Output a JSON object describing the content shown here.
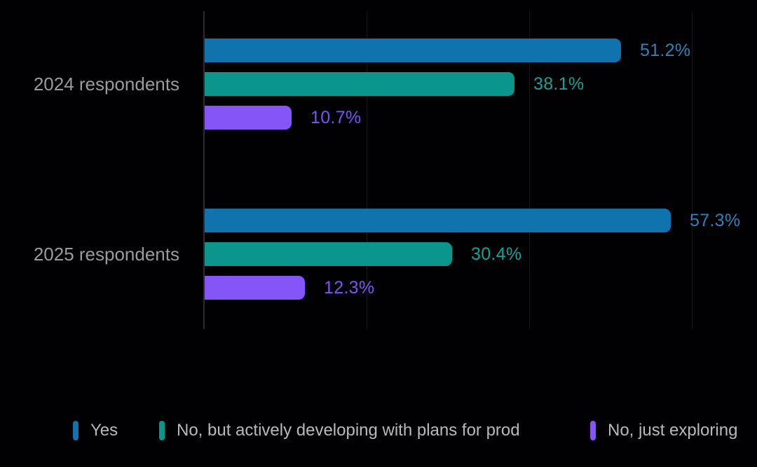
{
  "chart_data": {
    "type": "bar",
    "orientation": "horizontal",
    "title": "",
    "categories": [
      "2024 respondents",
      "2025 respondents"
    ],
    "series": [
      {
        "name": "Yes",
        "color": "#1173ae",
        "label_color": "#2e82ba",
        "values": [
          51.2,
          57.3
        ]
      },
      {
        "name": "No, but actively developing with plans for prod",
        "color": "#0a968c",
        "label_color": "#12a396",
        "values": [
          38.1,
          30.4
        ]
      },
      {
        "name": "No, just exploring",
        "color": "#8655f7",
        "label_color": "#7e52f8",
        "values": [
          10.7,
          12.3
        ]
      }
    ],
    "value_labels": [
      [
        "51.2%",
        "38.1%",
        "10.7%"
      ],
      [
        "57.3%",
        "30.4%",
        "12.3%"
      ]
    ],
    "xlim": [
      0,
      68
    ],
    "gridlines_pct": [
      20,
      40,
      60
    ],
    "grid": "vertical-only",
    "legend_position": "bottom",
    "colors": {
      "background": "#010103",
      "axis_line": "#2b2b30",
      "gridline": "#17171b",
      "category_label": "#9b9b9d",
      "legend_text": "#b9b9bb"
    }
  }
}
